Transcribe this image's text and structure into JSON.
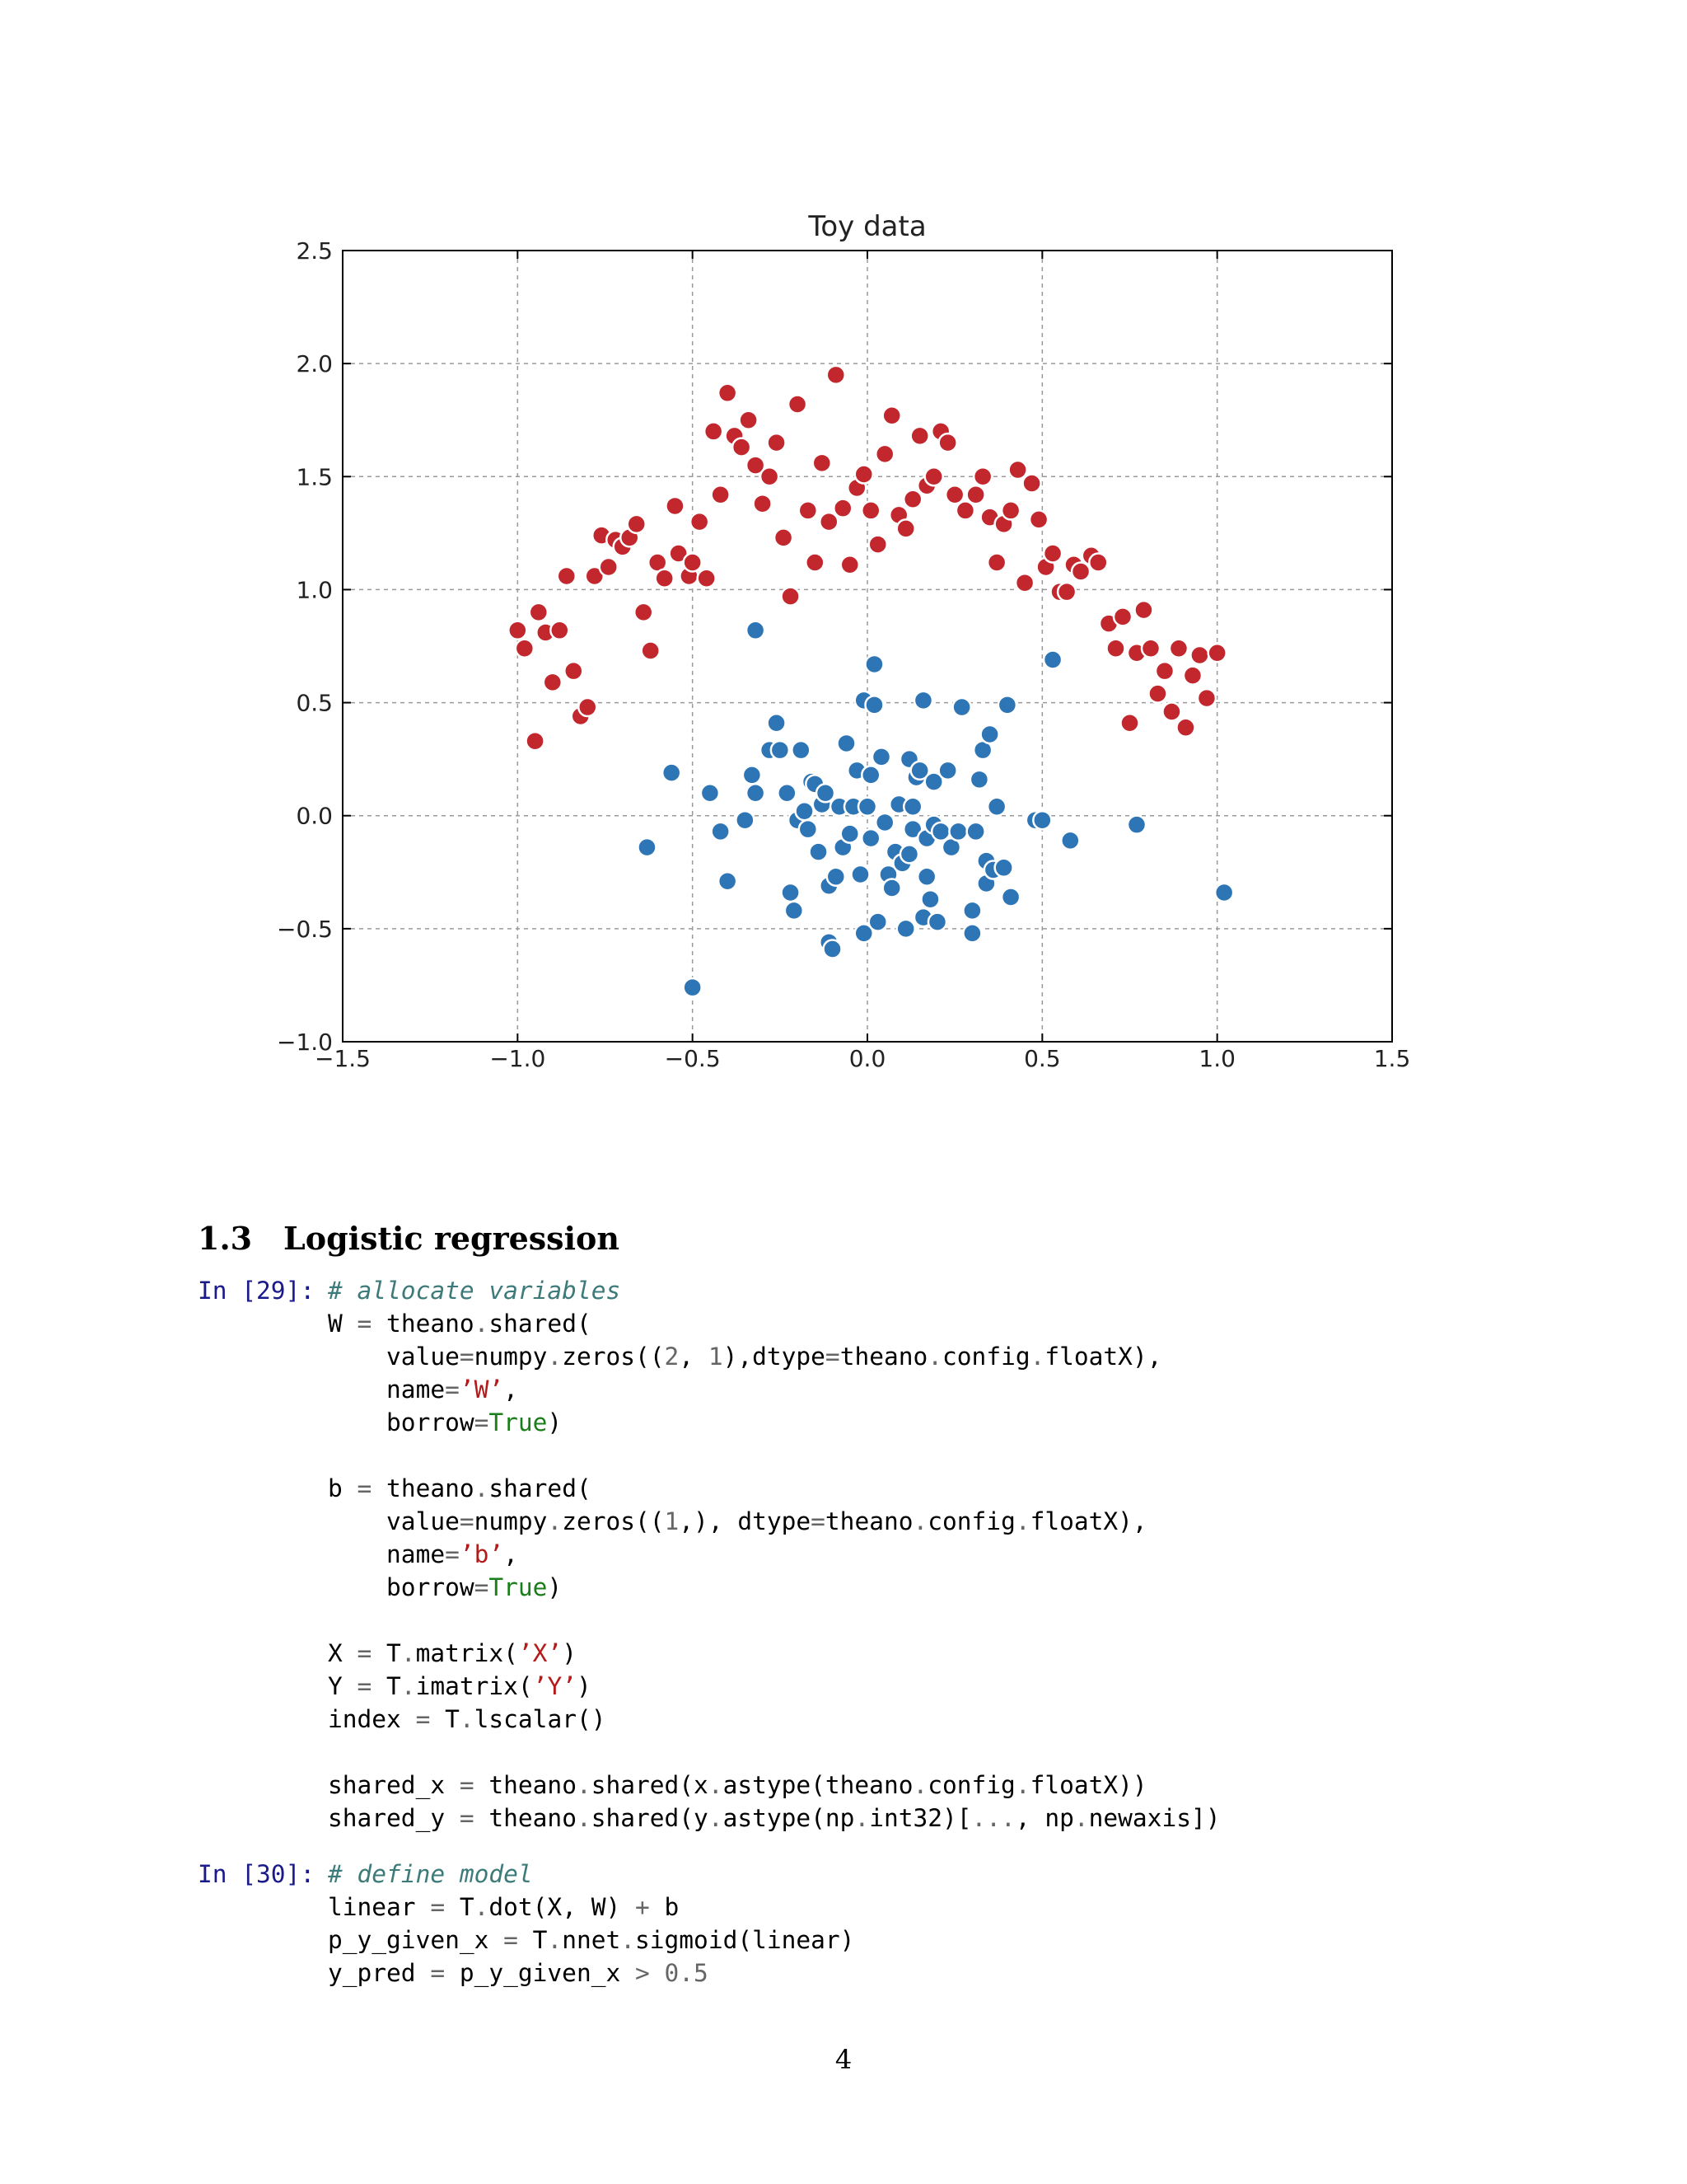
{
  "chart_data": {
    "type": "scatter",
    "title": "Toy data",
    "xlabel": "",
    "ylabel": "",
    "xlim": [
      -1.5,
      1.5
    ],
    "ylim": [
      -1.0,
      2.5
    ],
    "xticks": [
      "−1.5",
      "−1.0",
      "−0.5",
      "0.0",
      "0.5",
      "1.0",
      "1.5"
    ],
    "yticks": [
      "−1.0",
      "−0.5",
      "0.0",
      "0.5",
      "1.0",
      "1.5",
      "2.0",
      "2.5"
    ],
    "xtick_values": [
      -1.5,
      -1.0,
      -0.5,
      0.0,
      0.5,
      1.0,
      1.5
    ],
    "ytick_values": [
      -1.0,
      -0.5,
      0.0,
      0.5,
      1.0,
      1.5,
      2.0,
      2.5
    ],
    "grid": true,
    "legend": "none",
    "series": [
      {
        "color": "#c1272d",
        "points": [
          [
            -1.0,
            0.82
          ],
          [
            -0.98,
            0.74
          ],
          [
            -0.95,
            0.33
          ],
          [
            -0.94,
            0.9
          ],
          [
            -0.92,
            0.81
          ],
          [
            -0.9,
            0.59
          ],
          [
            -0.88,
            0.82
          ],
          [
            -0.86,
            1.06
          ],
          [
            -0.84,
            0.64
          ],
          [
            -0.82,
            0.44
          ],
          [
            -0.8,
            0.48
          ],
          [
            -0.78,
            1.06
          ],
          [
            -0.76,
            1.24
          ],
          [
            -0.74,
            1.1
          ],
          [
            -0.72,
            1.22
          ],
          [
            -0.7,
            1.19
          ],
          [
            -0.68,
            1.23
          ],
          [
            -0.66,
            1.29
          ],
          [
            -0.64,
            0.9
          ],
          [
            -0.62,
            0.73
          ],
          [
            -0.6,
            1.12
          ],
          [
            -0.58,
            1.05
          ],
          [
            -0.55,
            1.37
          ],
          [
            -0.54,
            1.16
          ],
          [
            -0.51,
            1.06
          ],
          [
            -0.5,
            1.12
          ],
          [
            -0.48,
            1.3
          ],
          [
            -0.46,
            1.05
          ],
          [
            -0.44,
            1.7
          ],
          [
            -0.42,
            1.42
          ],
          [
            -0.4,
            1.87
          ],
          [
            -0.38,
            1.68
          ],
          [
            -0.36,
            1.63
          ],
          [
            -0.34,
            1.75
          ],
          [
            -0.32,
            1.55
          ],
          [
            -0.3,
            1.38
          ],
          [
            -0.28,
            1.5
          ],
          [
            -0.26,
            1.65
          ],
          [
            -0.24,
            1.23
          ],
          [
            -0.22,
            0.97
          ],
          [
            -0.2,
            1.82
          ],
          [
            -0.17,
            1.35
          ],
          [
            -0.15,
            1.12
          ],
          [
            -0.13,
            1.56
          ],
          [
            -0.11,
            1.3
          ],
          [
            -0.09,
            1.95
          ],
          [
            -0.07,
            1.36
          ],
          [
            -0.05,
            1.11
          ],
          [
            -0.03,
            1.45
          ],
          [
            -0.01,
            1.51
          ],
          [
            0.01,
            1.35
          ],
          [
            0.03,
            1.2
          ],
          [
            0.05,
            1.6
          ],
          [
            0.07,
            1.77
          ],
          [
            0.09,
            1.33
          ],
          [
            0.11,
            1.27
          ],
          [
            0.13,
            1.4
          ],
          [
            0.15,
            1.68
          ],
          [
            0.17,
            1.46
          ],
          [
            0.19,
            1.5
          ],
          [
            0.21,
            1.7
          ],
          [
            0.23,
            1.65
          ],
          [
            0.25,
            1.42
          ],
          [
            0.28,
            1.35
          ],
          [
            0.31,
            1.42
          ],
          [
            0.33,
            1.5
          ],
          [
            0.35,
            1.32
          ],
          [
            0.37,
            1.12
          ],
          [
            0.39,
            1.29
          ],
          [
            0.41,
            1.35
          ],
          [
            0.43,
            1.53
          ],
          [
            0.45,
            1.03
          ],
          [
            0.47,
            1.47
          ],
          [
            0.49,
            1.31
          ],
          [
            0.51,
            1.1
          ],
          [
            0.53,
            1.16
          ],
          [
            0.55,
            0.99
          ],
          [
            0.57,
            0.99
          ],
          [
            0.59,
            1.11
          ],
          [
            0.61,
            1.08
          ],
          [
            0.64,
            1.15
          ],
          [
            0.66,
            1.12
          ],
          [
            0.69,
            0.85
          ],
          [
            0.71,
            0.74
          ],
          [
            0.73,
            0.88
          ],
          [
            0.75,
            0.41
          ],
          [
            0.77,
            0.72
          ],
          [
            0.79,
            0.91
          ],
          [
            0.81,
            0.74
          ],
          [
            0.83,
            0.54
          ],
          [
            0.85,
            0.64
          ],
          [
            0.87,
            0.46
          ],
          [
            0.89,
            0.74
          ],
          [
            0.91,
            0.39
          ],
          [
            0.93,
            0.62
          ],
          [
            0.95,
            0.71
          ],
          [
            0.97,
            0.52
          ],
          [
            1.0,
            0.72
          ]
        ]
      },
      {
        "color": "#2e75b6",
        "points": [
          [
            -0.63,
            -0.14
          ],
          [
            -0.56,
            0.19
          ],
          [
            -0.5,
            -0.76
          ],
          [
            -0.45,
            0.1
          ],
          [
            -0.42,
            -0.07
          ],
          [
            -0.4,
            -0.29
          ],
          [
            -0.35,
            -0.02
          ],
          [
            -0.33,
            0.18
          ],
          [
            -0.32,
            0.82
          ],
          [
            -0.32,
            0.1
          ],
          [
            -0.28,
            0.29
          ],
          [
            -0.26,
            0.41
          ],
          [
            -0.25,
            0.29
          ],
          [
            -0.23,
            0.1
          ],
          [
            -0.22,
            -0.34
          ],
          [
            -0.21,
            -0.42
          ],
          [
            -0.2,
            -0.02
          ],
          [
            -0.19,
            0.29
          ],
          [
            -0.18,
            0.02
          ],
          [
            -0.17,
            -0.06
          ],
          [
            -0.16,
            0.15
          ],
          [
            -0.15,
            0.14
          ],
          [
            -0.14,
            -0.16
          ],
          [
            -0.13,
            0.05
          ],
          [
            -0.12,
            0.1
          ],
          [
            -0.11,
            -0.31
          ],
          [
            -0.11,
            -0.56
          ],
          [
            -0.1,
            -0.59
          ],
          [
            -0.09,
            -0.27
          ],
          [
            -0.08,
            0.04
          ],
          [
            -0.07,
            -0.14
          ],
          [
            -0.06,
            0.32
          ],
          [
            -0.05,
            -0.08
          ],
          [
            -0.04,
            0.04
          ],
          [
            -0.03,
            0.2
          ],
          [
            -0.02,
            -0.26
          ],
          [
            -0.01,
            0.51
          ],
          [
            -0.01,
            -0.52
          ],
          [
            0.0,
            0.04
          ],
          [
            0.01,
            -0.1
          ],
          [
            0.01,
            0.18
          ],
          [
            0.02,
            0.67
          ],
          [
            0.02,
            0.49
          ],
          [
            0.03,
            -0.47
          ],
          [
            0.04,
            0.26
          ],
          [
            0.05,
            -0.03
          ],
          [
            0.06,
            -0.26
          ],
          [
            0.07,
            -0.32
          ],
          [
            0.08,
            -0.16
          ],
          [
            0.09,
            0.05
          ],
          [
            0.1,
            -0.21
          ],
          [
            0.11,
            -0.5
          ],
          [
            0.12,
            -0.17
          ],
          [
            0.12,
            0.25
          ],
          [
            0.13,
            -0.06
          ],
          [
            0.13,
            0.04
          ],
          [
            0.14,
            0.17
          ],
          [
            0.15,
            0.2
          ],
          [
            0.16,
            -0.45
          ],
          [
            0.16,
            0.51
          ],
          [
            0.17,
            -0.1
          ],
          [
            0.17,
            -0.27
          ],
          [
            0.18,
            -0.37
          ],
          [
            0.19,
            0.15
          ],
          [
            0.19,
            -0.04
          ],
          [
            0.2,
            -0.47
          ],
          [
            0.21,
            -0.07
          ],
          [
            0.23,
            0.2
          ],
          [
            0.24,
            -0.14
          ],
          [
            0.26,
            -0.07
          ],
          [
            0.27,
            0.48
          ],
          [
            0.3,
            -0.52
          ],
          [
            0.3,
            -0.42
          ],
          [
            0.31,
            -0.07
          ],
          [
            0.32,
            0.16
          ],
          [
            0.33,
            0.29
          ],
          [
            0.34,
            -0.2
          ],
          [
            0.34,
            -0.3
          ],
          [
            0.35,
            0.36
          ],
          [
            0.36,
            -0.24
          ],
          [
            0.37,
            0.04
          ],
          [
            0.39,
            -0.23
          ],
          [
            0.4,
            0.49
          ],
          [
            0.41,
            -0.36
          ],
          [
            0.48,
            -0.02
          ],
          [
            0.5,
            -0.02
          ],
          [
            0.53,
            0.69
          ],
          [
            0.58,
            -0.11
          ],
          [
            0.77,
            -0.04
          ],
          [
            1.02,
            -0.34
          ]
        ]
      }
    ]
  },
  "section": {
    "number": "1.3",
    "title": "Logistic regression"
  },
  "cells": [
    {
      "prompt": "In [29]:"
    },
    {
      "prompt": "In [30]:"
    }
  ],
  "page_number": "4"
}
